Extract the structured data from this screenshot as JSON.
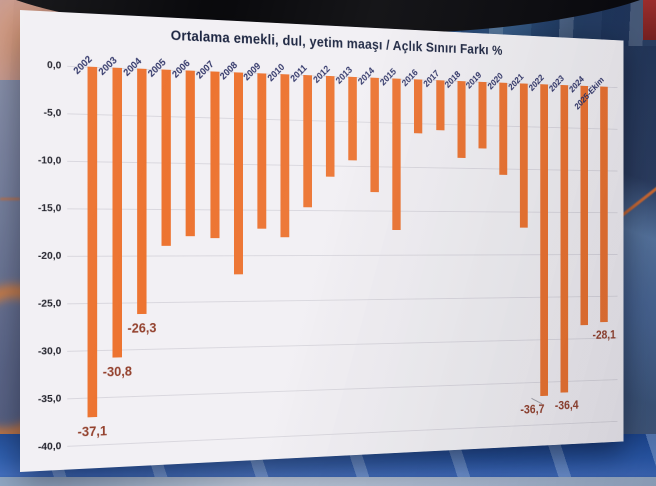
{
  "chart_data": {
    "type": "bar",
    "title": "Ortalama emekli, dul, yetim maaşı / Açlık Sınırı Farkı %",
    "categories": [
      "2002",
      "2003",
      "2004",
      "2005",
      "2006",
      "2007",
      "2008",
      "2009",
      "2010",
      "2011",
      "2012",
      "2013",
      "2014",
      "2015",
      "2016",
      "2017",
      "2018",
      "2019",
      "2020",
      "2021",
      "2022",
      "2023",
      "2024",
      "2025-Ekim"
    ],
    "values": [
      -37.1,
      -30.8,
      -26.3,
      -19.0,
      -17.9,
      -18.1,
      -22.1,
      -17.1,
      -18.0,
      -14.7,
      -11.2,
      -9.4,
      -12.9,
      -17.2,
      -6.1,
      -5.7,
      -8.9,
      -7.7,
      -10.7,
      -16.9,
      -36.7,
      -36.4,
      -28.4,
      -28.1
    ],
    "data_labels": [
      "-37,1",
      "-30,8",
      "-26,3",
      null,
      null,
      null,
      null,
      null,
      null,
      null,
      null,
      null,
      null,
      null,
      null,
      null,
      null,
      null,
      null,
      null,
      "-36,7",
      "-36,4",
      null,
      "-28,1"
    ],
    "xlabel": "",
    "ylabel": "",
    "ylim": [
      -40,
      0
    ],
    "ytick_step": 5,
    "ytick_labels": [
      "0,0",
      "-5,0",
      "-10,0",
      "-15,0",
      "-20,0",
      "-25,0",
      "-30,0",
      "-35,0",
      "-40,0"
    ],
    "grid": true,
    "legend": false
  },
  "colors": {
    "bar": "#ED7431",
    "title_text": "#1B2440",
    "axis_tick_text": "#1A1A24",
    "category_label_text": "#2E3367",
    "data_label_text": "#93402C",
    "gridline": "#D9D7DE",
    "panel_background": "#F2F0F4"
  }
}
